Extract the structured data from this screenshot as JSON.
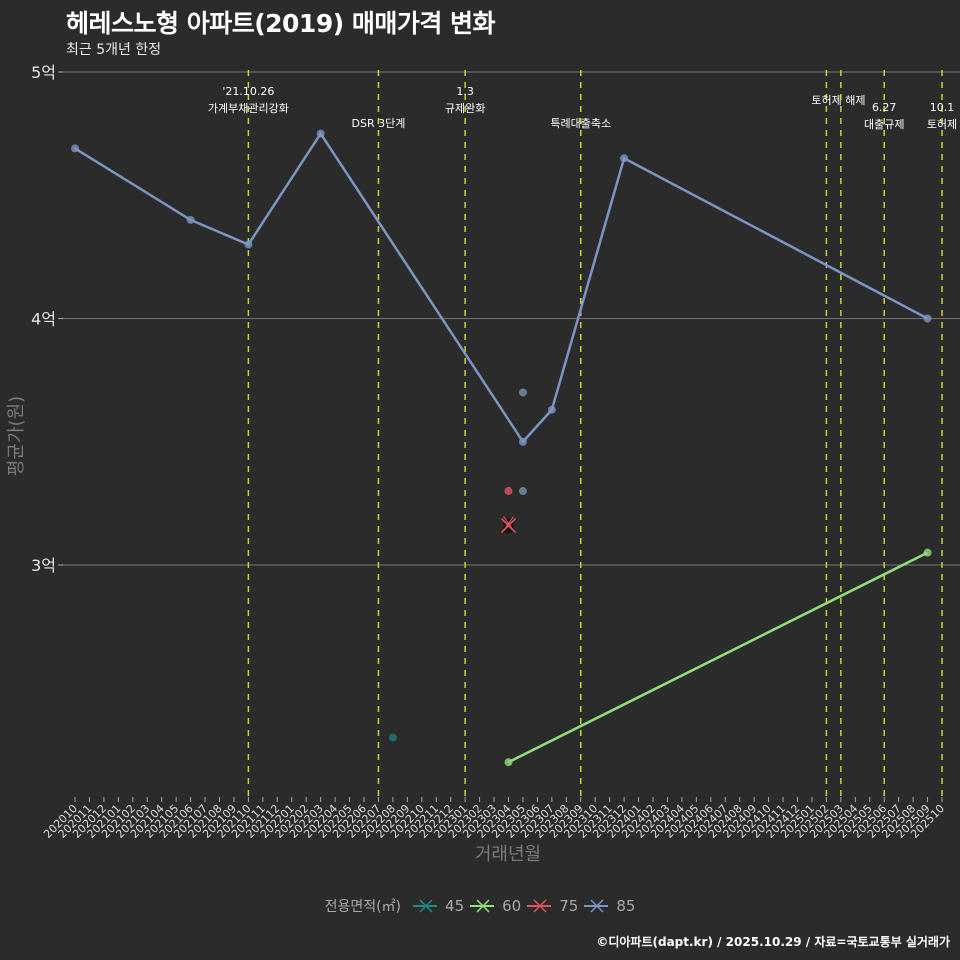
{
  "header": {
    "title": "헤레스노형 아파트(2019) 매매가격 변화",
    "subtitle": "최근 5개년 한정"
  },
  "caption": "©디아파트(dapt.kr) / 2025.10.29 / 자료=국토교통부 실거래가",
  "legend": {
    "title": "전용면적(㎡)",
    "items": [
      {
        "label": "45",
        "color": "#1f8a8a"
      },
      {
        "label": "60",
        "color": "#90e07a"
      },
      {
        "label": "75",
        "color": "#e0555a"
      },
      {
        "label": "85",
        "color": "#7b96c4"
      }
    ]
  },
  "chart_data": {
    "type": "line",
    "title": "헤레스노형 아파트(2019) 매매가격 변화",
    "subtitle": "최근 5개년 한정",
    "xlabel": "거래년월",
    "ylabel": "평균가(원)",
    "ylim": [
      2.0,
      5.0
    ],
    "yticks": [
      {
        "value": 3,
        "label": "3억"
      },
      {
        "value": 4,
        "label": "4억"
      },
      {
        "value": 5,
        "label": "5억"
      }
    ],
    "grid": true,
    "legend_position": "bottom",
    "x": [
      "202010",
      "202011",
      "202012",
      "202101",
      "202102",
      "202103",
      "202104",
      "202105",
      "202106",
      "202107",
      "202108",
      "202109",
      "202110",
      "202111",
      "202112",
      "202201",
      "202202",
      "202203",
      "202204",
      "202205",
      "202206",
      "202207",
      "202208",
      "202209",
      "202210",
      "202211",
      "202212",
      "202301",
      "202302",
      "202303",
      "202304",
      "202305",
      "202306",
      "202307",
      "202308",
      "202309",
      "202310",
      "202311",
      "202312",
      "202401",
      "202402",
      "202403",
      "202404",
      "202405",
      "202406",
      "202407",
      "202408",
      "202409",
      "202410",
      "202411",
      "202412",
      "202501",
      "202502",
      "202503",
      "202504",
      "202505",
      "202506",
      "202507",
      "202508",
      "202509",
      "202510"
    ],
    "series": [
      {
        "name": "45",
        "color": "#1f7a7a",
        "points": [
          {
            "x": "202208",
            "y": 2.3
          }
        ],
        "line": false
      },
      {
        "name": "60",
        "color": "#90e07a",
        "points": [
          {
            "x": "202304",
            "y": 2.2
          },
          {
            "x": "202509",
            "y": 3.05
          }
        ],
        "line": true
      },
      {
        "name": "75",
        "color": "#e0555a",
        "points": [
          {
            "x": "202304",
            "y": 3.3
          }
        ],
        "line": false,
        "cross_markers": [
          {
            "x": "202304",
            "y": 3.16
          }
        ]
      },
      {
        "name": "85",
        "color": "#7b96c4",
        "points": [
          {
            "x": "202010",
            "y": 4.69
          },
          {
            "x": "202106",
            "y": 4.4
          },
          {
            "x": "202110",
            "y": 4.3
          },
          {
            "x": "202203",
            "y": 4.75
          },
          {
            "x": "202305",
            "y": 3.5
          },
          {
            "x": "202307",
            "y": 3.63
          },
          {
            "x": "202312",
            "y": 4.65
          },
          {
            "x": "202509",
            "y": 4.0
          }
        ],
        "line": true,
        "extra_points": [
          {
            "x": "202305",
            "y": 3.7
          },
          {
            "x": "202305",
            "y": 3.3
          }
        ]
      }
    ],
    "events": [
      {
        "x": "202110",
        "label_lines": [
          "'21.10.26",
          "가계부채관리강화"
        ],
        "row": 0
      },
      {
        "x": "202207",
        "label_lines": [
          "DSR 3단계"
        ],
        "row": 1
      },
      {
        "x": "202301",
        "label_lines": [
          "1.3",
          "규제완화"
        ],
        "row": 0
      },
      {
        "x": "202309",
        "label_lines": [
          "특례대출축소"
        ],
        "row": 1
      },
      {
        "x": "202502",
        "label_lines": [
          "토허제 해제"
        ],
        "row": 0,
        "offset": 12
      },
      {
        "x": "202503",
        "label_lines": [],
        "row": 0
      },
      {
        "x": "202506",
        "label_lines": [
          "6.27",
          "대출규제"
        ],
        "row": 1
      },
      {
        "x": "202510",
        "label_lines": [
          "10.1",
          "토허제"
        ],
        "row": 1
      }
    ]
  }
}
